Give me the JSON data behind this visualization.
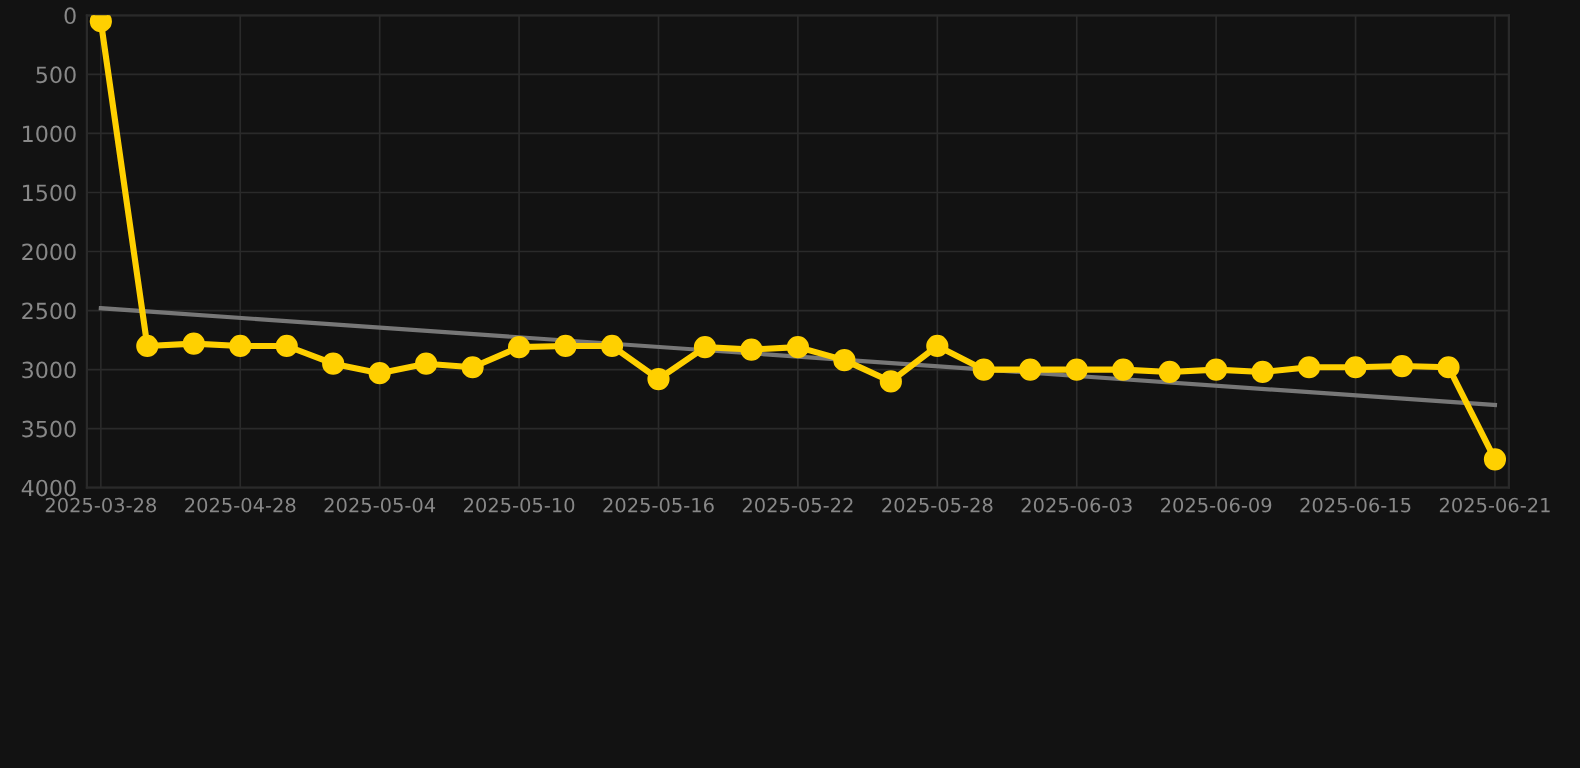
{
  "chart_data": {
    "type": "line",
    "categories": [
      "2025-03-28",
      null,
      null,
      "2025-04-28",
      null,
      null,
      "2025-05-04",
      null,
      null,
      "2025-05-10",
      null,
      null,
      "2025-05-16",
      null,
      null,
      "2025-05-22",
      null,
      null,
      "2025-05-28",
      null,
      null,
      "2025-06-03",
      null,
      null,
      "2025-06-09",
      null,
      null,
      "2025-06-15",
      null,
      null,
      "2025-06-21"
    ],
    "series": [
      {
        "color": "#ffd000",
        "marker": "circle",
        "values": [
          50,
          2800,
          2780,
          2800,
          2800,
          2950,
          3030,
          2950,
          2980,
          2810,
          2800,
          2800,
          3080,
          2810,
          2830,
          2810,
          2920,
          3100,
          2800,
          3000,
          3000,
          3000,
          3000,
          3020,
          3000,
          3020,
          2980,
          2980,
          2970,
          2980,
          3760
        ]
      },
      {
        "type": "line",
        "color": "#777777",
        "marker": "none",
        "values": [
          2480,
          null,
          null,
          null,
          null,
          null,
          null,
          null,
          null,
          null,
          null,
          null,
          null,
          null,
          null,
          null,
          null,
          null,
          null,
          null,
          null,
          null,
          null,
          null,
          null,
          null,
          null,
          null,
          null,
          null,
          3300
        ]
      }
    ],
    "ylim": [
      4000,
      0
    ],
    "yticks": [
      0,
      500,
      1000,
      1500,
      2000,
      2500,
      3000,
      3500,
      4000
    ],
    "grid": true,
    "legend": false
  }
}
